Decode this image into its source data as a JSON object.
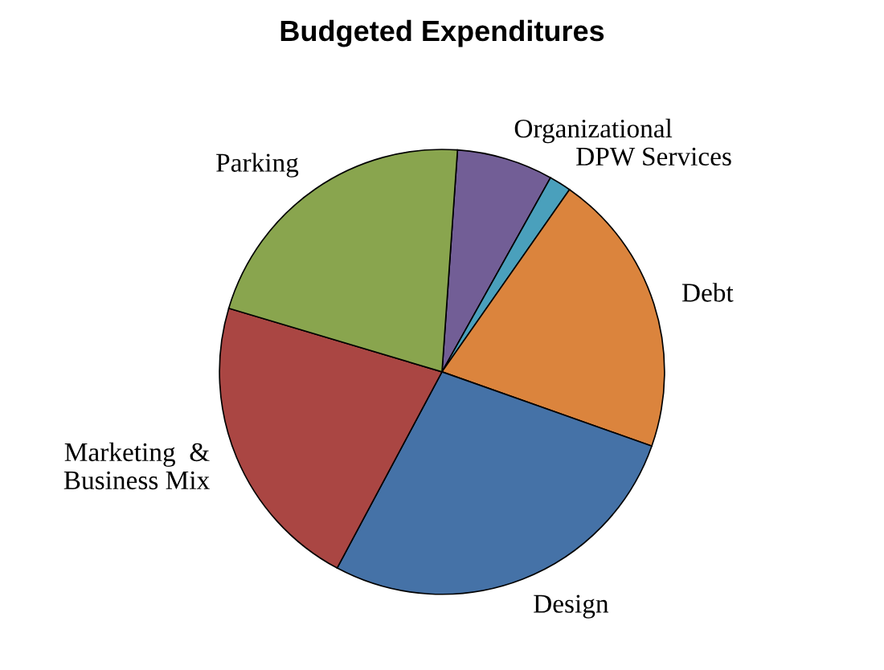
{
  "chart_data": {
    "type": "pie",
    "title": "Budgeted Expenditures",
    "categories": [
      "Organizational",
      "DPW Services",
      "Debt",
      "Design",
      "Marketing  &\nBusiness Mix",
      "Parking"
    ],
    "values": [
      7.0,
      1.6,
      20.7,
      27.4,
      21.8,
      21.5
    ],
    "colors": [
      "#725e96",
      "#4aa0bc",
      "#db843d",
      "#4572a7",
      "#aa4643",
      "#89a54e"
    ],
    "legend": false
  }
}
